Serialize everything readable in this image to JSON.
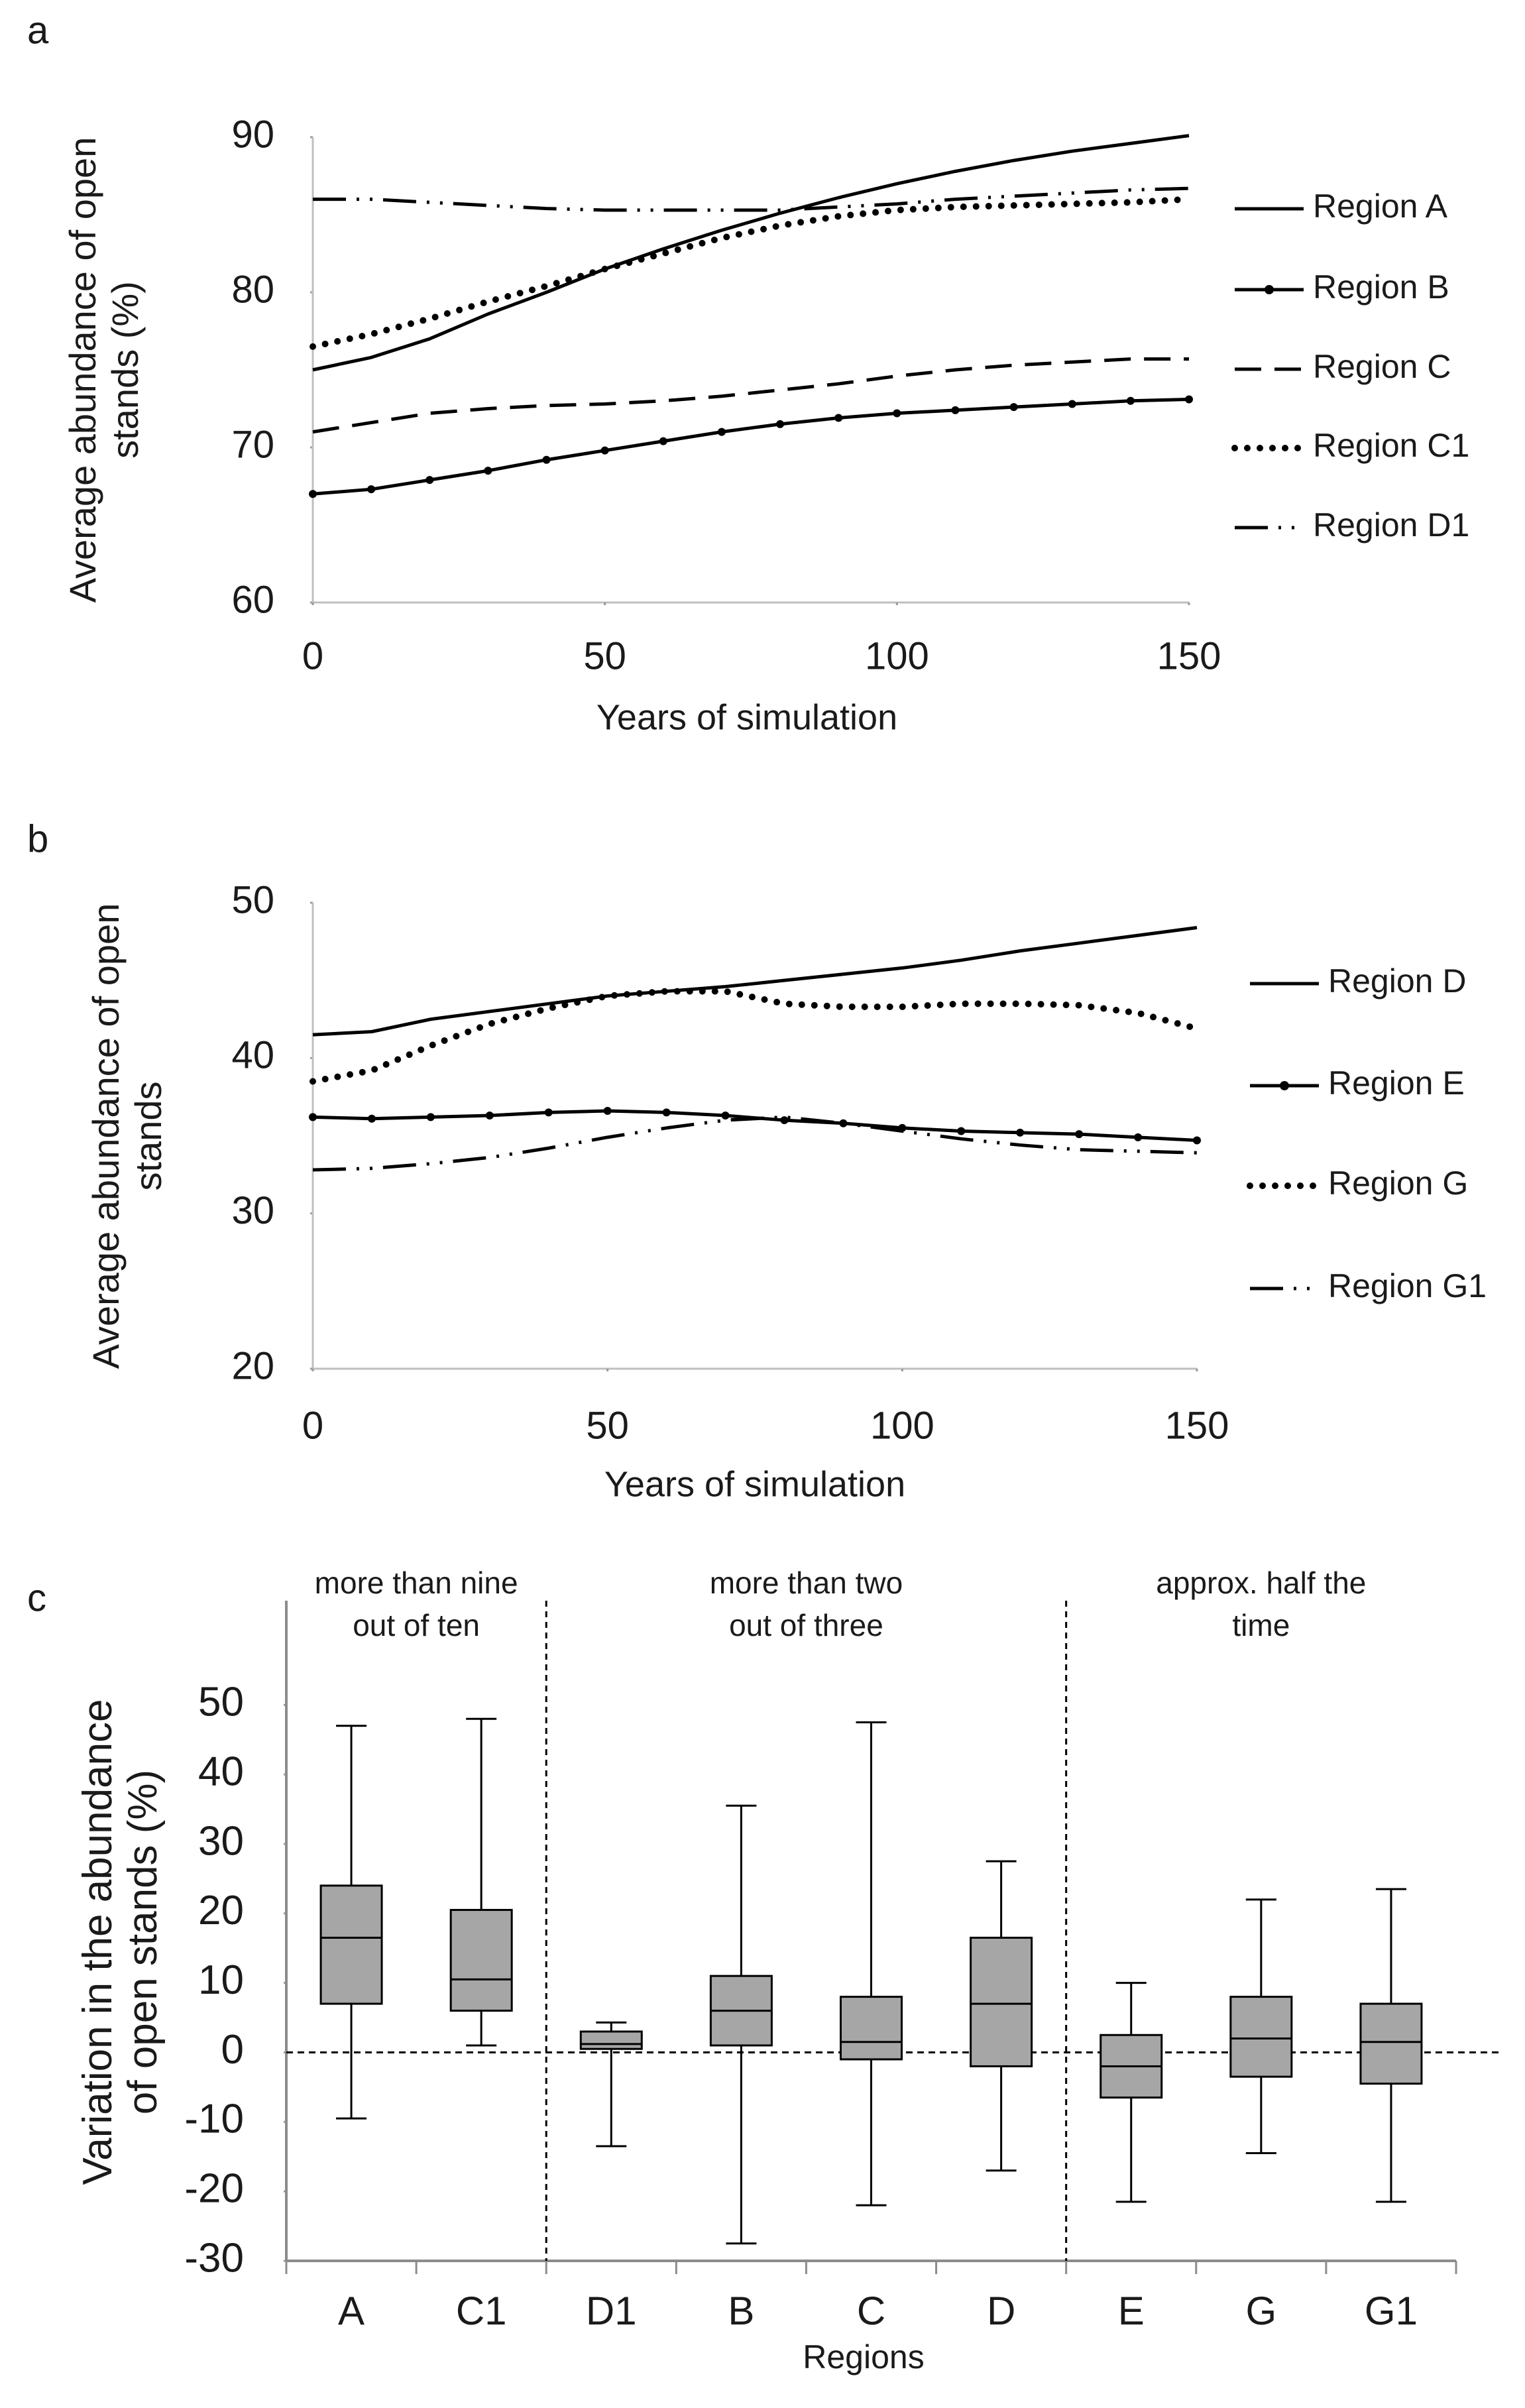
{
  "chart_data": [
    {
      "type": "line",
      "panel": "a",
      "xlabel": "Years of simulation",
      "ylabel": [
        "Average  abundance of open",
        "stands (%)"
      ],
      "x": [
        0,
        10,
        20,
        30,
        40,
        50,
        60,
        70,
        80,
        90,
        100,
        110,
        120,
        130,
        140,
        150
      ],
      "xlim": [
        0,
        150
      ],
      "xticks": [
        0,
        50,
        100,
        150
      ],
      "ylim": [
        60,
        90
      ],
      "yticks": [
        60,
        70,
        80,
        90
      ],
      "series": [
        {
          "name": "Region A",
          "color": "#000000",
          "style": "solid",
          "values": [
            75,
            75.8,
            77,
            78.6,
            80,
            81.5,
            82.8,
            84,
            85.1,
            86.1,
            87,
            87.8,
            88.5,
            89.1,
            89.6,
            90.1
          ]
        },
        {
          "name": "Region B",
          "color": "#000000",
          "style": "markers",
          "values": [
            67,
            67.3,
            67.9,
            68.5,
            69.2,
            69.8,
            70.4,
            71,
            71.5,
            71.9,
            72.2,
            72.4,
            72.6,
            72.8,
            73,
            73.1
          ]
        },
        {
          "name": "Region C",
          "color": "#000000",
          "style": "dashed",
          "values": [
            71,
            71.6,
            72.2,
            72.5,
            72.7,
            72.8,
            73,
            73.3,
            73.7,
            74.1,
            74.6,
            75,
            75.3,
            75.5,
            75.7,
            75.7
          ]
        },
        {
          "name": "Region C1",
          "color": "#000000",
          "style": "dotted",
          "values": [
            76.5,
            77.3,
            78.3,
            79.4,
            80.4,
            81.5,
            82.5,
            83.5,
            84.3,
            84.9,
            85.3,
            85.5,
            85.6,
            85.7,
            85.8,
            86
          ]
        },
        {
          "name": "Region D1",
          "color": "#000000",
          "style": "dashdotdot",
          "values": [
            86,
            86,
            85.8,
            85.6,
            85.4,
            85.3,
            85.3,
            85.3,
            85.3,
            85.5,
            85.7,
            86,
            86.2,
            86.4,
            86.6,
            86.7
          ]
        }
      ]
    },
    {
      "type": "line",
      "panel": "b",
      "xlabel": "Years of simulation",
      "ylabel": [
        "Average  abundance of open",
        "stands"
      ],
      "x": [
        0,
        10,
        20,
        30,
        40,
        50,
        60,
        70,
        80,
        90,
        100,
        110,
        120,
        130,
        140,
        150
      ],
      "xlim": [
        0,
        150
      ],
      "xticks": [
        0,
        50,
        100,
        150
      ],
      "ylim": [
        20,
        50
      ],
      "yticks": [
        20,
        30,
        40,
        50
      ],
      "series": [
        {
          "name": "Region D",
          "color": "#000000",
          "style": "solid",
          "values": [
            41.5,
            41.7,
            42.5,
            43,
            43.5,
            44,
            44.3,
            44.6,
            45,
            45.4,
            45.8,
            46.3,
            46.9,
            47.4,
            47.9,
            48.4
          ]
        },
        {
          "name": "Region E",
          "color": "#000000",
          "style": "markers",
          "values": [
            36.2,
            36.1,
            36.2,
            36.3,
            36.5,
            36.6,
            36.5,
            36.3,
            36,
            35.8,
            35.5,
            35.3,
            35.2,
            35.1,
            34.9,
            34.7
          ]
        },
        {
          "name": "Region G",
          "color": "#000000",
          "style": "dotted",
          "values": [
            38.5,
            39.2,
            40.8,
            42.2,
            43.2,
            44,
            44.3,
            44.3,
            43.5,
            43.3,
            43.3,
            43.5,
            43.5,
            43.4,
            42.9,
            41.9
          ]
        },
        {
          "name": "Region G1",
          "color": "#000000",
          "style": "dashdotdot",
          "values": [
            32.8,
            32.9,
            33.2,
            33.6,
            34.2,
            34.9,
            35.5,
            36,
            36.2,
            35.8,
            35.3,
            34.8,
            34.4,
            34.1,
            34,
            33.9
          ]
        }
      ]
    },
    {
      "type": "box",
      "panel": "c",
      "xlabel": "Regions",
      "ylabel": [
        "Variation in the abundance",
        "of open stands (%)"
      ],
      "categories": [
        "A",
        "C1",
        "D1",
        "B",
        "C",
        "D",
        "E",
        "G",
        "G1"
      ],
      "ylim": [
        -30,
        65
      ],
      "yticks": [
        -30,
        -20,
        -10,
        0,
        10,
        20,
        30,
        40,
        50
      ],
      "color": "#a6a6a6",
      "reference_line": 0,
      "groups": [
        [
          "more than nine",
          "out of ten"
        ],
        [
          "more than two",
          "out of three"
        ],
        [
          "approx. half the",
          "time"
        ]
      ],
      "boxes": [
        {
          "min": -9.5,
          "q1": 7,
          "median": 16.5,
          "q3": 24,
          "max": 47
        },
        {
          "min": 1,
          "q1": 6,
          "median": 10.5,
          "q3": 20.5,
          "max": 48
        },
        {
          "min": -13.5,
          "q1": 0.5,
          "median": 1.2,
          "q3": 3,
          "max": 4.3
        },
        {
          "min": -27.5,
          "q1": 1,
          "median": 6,
          "q3": 11,
          "max": 35.5
        },
        {
          "min": -22,
          "q1": -1,
          "median": 1.5,
          "q3": 8,
          "max": 47.5
        },
        {
          "min": -17,
          "q1": -2,
          "median": 7,
          "q3": 16.5,
          "max": 27.5
        },
        {
          "min": -21.5,
          "q1": -6.5,
          "median": -2,
          "q3": 2.5,
          "max": 10
        },
        {
          "min": -14.5,
          "q1": -3.5,
          "median": 2,
          "q3": 8,
          "max": 22
        },
        {
          "min": -21.5,
          "q1": -4.5,
          "median": 1.5,
          "q3": 7,
          "max": 23.5
        }
      ]
    }
  ]
}
